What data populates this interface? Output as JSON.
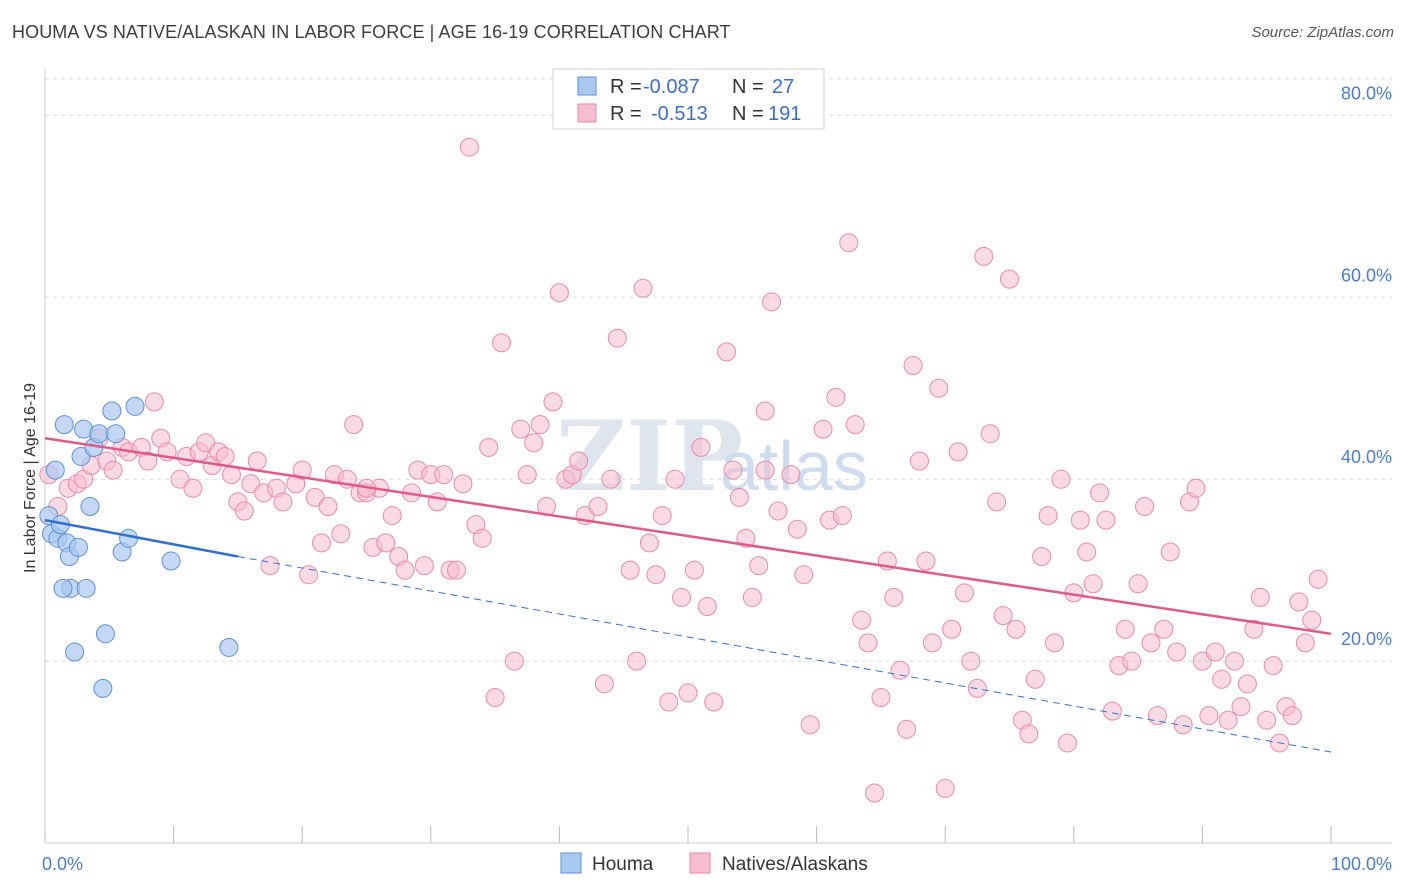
{
  "title": "HOUMA VS NATIVE/ALASKAN IN LABOR FORCE | AGE 16-19 CORRELATION CHART",
  "source": "Source: ZipAtlas.com",
  "watermark": {
    "zip": "ZIP",
    "atlas": "atlas"
  },
  "chart_data": {
    "type": "scatter",
    "title": "HOUMA VS NATIVE/ALASKAN IN LABOR FORCE | AGE 16-19 CORRELATION CHART",
    "xlabel": "",
    "ylabel": "In Labor Force | Age 16-19",
    "xlim": [
      0,
      100
    ],
    "ylim": [
      0,
      84
    ],
    "x_tick_labels": [
      "0.0%",
      "100.0%"
    ],
    "y_ticks": [
      20,
      40,
      60,
      80
    ],
    "y_tick_labels": [
      "20.0%",
      "40.0%",
      "60.0%",
      "80.0%"
    ],
    "grid": true,
    "legend_placement": "top-center",
    "series": [
      {
        "name": "Houma",
        "color": "#a9c8ef",
        "stroke": "#5b8fd4",
        "line_color": "#2f6fcf",
        "r_label": "R =",
        "r_value": "-0.087",
        "n_label": "N =",
        "n_value": "27",
        "trend": {
          "x0": 0,
          "y0": 35.5,
          "x1": 15,
          "y1": 31.5,
          "dashed_to_x": 100,
          "dashed_to_y": 10
        },
        "points": [
          [
            0.3,
            36.0
          ],
          [
            0.5,
            34.0
          ],
          [
            0.8,
            41.0
          ],
          [
            1.0,
            33.5
          ],
          [
            1.2,
            35.0
          ],
          [
            1.5,
            46.0
          ],
          [
            1.7,
            33.0
          ],
          [
            1.9,
            31.5
          ],
          [
            2.0,
            28.0
          ],
          [
            2.3,
            21.0
          ],
          [
            2.8,
            42.5
          ],
          [
            3.0,
            45.5
          ],
          [
            3.2,
            28.0
          ],
          [
            3.5,
            37.0
          ],
          [
            3.8,
            43.5
          ],
          [
            4.2,
            45.0
          ],
          [
            4.5,
            17.0
          ],
          [
            4.7,
            23.0
          ],
          [
            5.2,
            47.5
          ],
          [
            5.5,
            45.0
          ],
          [
            6.0,
            32.0
          ],
          [
            6.5,
            33.5
          ],
          [
            7.0,
            48.0
          ],
          [
            9.8,
            31.0
          ],
          [
            14.3,
            21.5
          ],
          [
            2.6,
            32.5
          ],
          [
            1.4,
            28.0
          ]
        ]
      },
      {
        "name": "Natives/Alaskans",
        "color": "#f6bcd0",
        "stroke": "#e889a8",
        "line_color": "#e0588a",
        "r_label": "R =",
        "r_value": "-0.513",
        "n_label": "N =",
        "n_value": "191",
        "trend": {
          "x0": 0,
          "y0": 44.5,
          "x1": 100,
          "y1": 23.0
        },
        "points": [
          [
            0.3,
            40.5
          ],
          [
            1.0,
            37.0
          ],
          [
            1.8,
            39.0
          ],
          [
            2.5,
            39.5
          ],
          [
            3.0,
            40.0
          ],
          [
            3.6,
            41.5
          ],
          [
            4.2,
            44.5
          ],
          [
            4.8,
            42.0
          ],
          [
            5.3,
            41.0
          ],
          [
            6.0,
            43.5
          ],
          [
            6.5,
            43.0
          ],
          [
            7.5,
            43.5
          ],
          [
            8.0,
            42.0
          ],
          [
            8.5,
            48.5
          ],
          [
            9.0,
            44.5
          ],
          [
            9.5,
            43.0
          ],
          [
            10.5,
            40.0
          ],
          [
            11.0,
            42.5
          ],
          [
            11.5,
            39.0
          ],
          [
            12.0,
            43.0
          ],
          [
            12.5,
            44.0
          ],
          [
            13.0,
            41.5
          ],
          [
            13.5,
            43.0
          ],
          [
            14.0,
            42.5
          ],
          [
            14.5,
            40.5
          ],
          [
            15.0,
            37.5
          ],
          [
            15.5,
            36.5
          ],
          [
            16.0,
            39.5
          ],
          [
            16.5,
            42.0
          ],
          [
            17.0,
            38.5
          ],
          [
            17.5,
            30.5
          ],
          [
            18.0,
            39.0
          ],
          [
            18.5,
            37.5
          ],
          [
            19.5,
            39.5
          ],
          [
            20.0,
            41.0
          ],
          [
            20.5,
            29.5
          ],
          [
            21.0,
            38.0
          ],
          [
            21.5,
            33.0
          ],
          [
            22.0,
            37.0
          ],
          [
            22.5,
            40.5
          ],
          [
            23.0,
            34.0
          ],
          [
            23.5,
            40.0
          ],
          [
            24.0,
            46.0
          ],
          [
            24.5,
            38.5
          ],
          [
            25.0,
            38.5
          ],
          [
            25.5,
            32.5
          ],
          [
            26.0,
            39.0
          ],
          [
            26.5,
            33.0
          ],
          [
            27.0,
            36.0
          ],
          [
            27.5,
            31.5
          ],
          [
            28.0,
            30.0
          ],
          [
            28.5,
            38.5
          ],
          [
            29.0,
            41.0
          ],
          [
            29.5,
            30.5
          ],
          [
            30.0,
            40.5
          ],
          [
            30.5,
            37.5
          ],
          [
            31.0,
            40.5
          ],
          [
            31.5,
            30.0
          ],
          [
            32.0,
            30.0
          ],
          [
            32.5,
            39.5
          ],
          [
            33.0,
            76.5
          ],
          [
            33.5,
            35.0
          ],
          [
            34.0,
            33.5
          ],
          [
            34.5,
            43.5
          ],
          [
            35.0,
            16.0
          ],
          [
            35.5,
            55.0
          ],
          [
            36.5,
            20.0
          ],
          [
            37.0,
            45.5
          ],
          [
            37.5,
            40.5
          ],
          [
            38.0,
            44.0
          ],
          [
            38.5,
            46.0
          ],
          [
            39.0,
            37.0
          ],
          [
            39.5,
            48.5
          ],
          [
            40.0,
            60.5
          ],
          [
            40.5,
            40.0
          ],
          [
            41.0,
            40.5
          ],
          [
            41.5,
            42.0
          ],
          [
            42.0,
            36.0
          ],
          [
            43.0,
            37.0
          ],
          [
            43.5,
            17.5
          ],
          [
            44.0,
            40.0
          ],
          [
            44.5,
            55.5
          ],
          [
            45.5,
            30.0
          ],
          [
            46.0,
            20.0
          ],
          [
            46.5,
            61.0
          ],
          [
            47.0,
            33.0
          ],
          [
            47.5,
            29.5
          ],
          [
            48.0,
            36.0
          ],
          [
            48.5,
            15.5
          ],
          [
            49.0,
            40.0
          ],
          [
            49.5,
            27.0
          ],
          [
            50.0,
            16.5
          ],
          [
            50.5,
            30.0
          ],
          [
            51.0,
            43.5
          ],
          [
            51.5,
            26.0
          ],
          [
            52.0,
            15.5
          ],
          [
            53.0,
            54.0
          ],
          [
            53.5,
            41.0
          ],
          [
            54.0,
            38.0
          ],
          [
            54.5,
            33.5
          ],
          [
            55.0,
            27.0
          ],
          [
            55.5,
            30.5
          ],
          [
            56.0,
            47.5
          ],
          [
            56.5,
            59.5
          ],
          [
            57.0,
            36.5
          ],
          [
            58.0,
            40.5
          ],
          [
            58.5,
            34.5
          ],
          [
            59.0,
            29.5
          ],
          [
            59.5,
            13.0
          ],
          [
            60.5,
            45.5
          ],
          [
            61.0,
            35.5
          ],
          [
            61.5,
            49.0
          ],
          [
            62.0,
            36.0
          ],
          [
            62.5,
            66.0
          ],
          [
            63.0,
            46.0
          ],
          [
            63.5,
            24.5
          ],
          [
            64.0,
            22.0
          ],
          [
            64.5,
            5.5
          ],
          [
            65.0,
            16.0
          ],
          [
            65.5,
            31.0
          ],
          [
            66.0,
            27.0
          ],
          [
            66.5,
            19.0
          ],
          [
            67.0,
            12.5
          ],
          [
            67.5,
            52.5
          ],
          [
            68.0,
            42.0
          ],
          [
            68.5,
            31.0
          ],
          [
            69.0,
            22.0
          ],
          [
            69.5,
            50.0
          ],
          [
            70.0,
            6.0
          ],
          [
            70.5,
            23.5
          ],
          [
            71.0,
            43.0
          ],
          [
            71.5,
            27.5
          ],
          [
            72.0,
            20.0
          ],
          [
            72.5,
            17.0
          ],
          [
            73.0,
            64.5
          ],
          [
            73.5,
            45.0
          ],
          [
            74.0,
            37.5
          ],
          [
            74.5,
            25.0
          ],
          [
            75.0,
            62.0
          ],
          [
            75.5,
            23.5
          ],
          [
            76.0,
            13.5
          ],
          [
            76.5,
            12.0
          ],
          [
            77.0,
            18.0
          ],
          [
            77.5,
            31.5
          ],
          [
            78.0,
            36.0
          ],
          [
            78.5,
            22.0
          ],
          [
            79.0,
            40.0
          ],
          [
            79.5,
            11.0
          ],
          [
            80.0,
            27.5
          ],
          [
            80.5,
            35.5
          ],
          [
            81.0,
            32.0
          ],
          [
            81.5,
            28.5
          ],
          [
            82.0,
            38.5
          ],
          [
            82.5,
            35.5
          ],
          [
            83.0,
            14.5
          ],
          [
            83.5,
            19.5
          ],
          [
            84.0,
            23.5
          ],
          [
            84.5,
            20.0
          ],
          [
            85.0,
            28.5
          ],
          [
            85.5,
            37.0
          ],
          [
            86.0,
            22.0
          ],
          [
            86.5,
            14.0
          ],
          [
            87.0,
            23.5
          ],
          [
            87.5,
            32.0
          ],
          [
            88.0,
            21.0
          ],
          [
            88.5,
            13.0
          ],
          [
            89.0,
            37.5
          ],
          [
            89.5,
            39.0
          ],
          [
            90.0,
            20.0
          ],
          [
            90.5,
            14.0
          ],
          [
            91.0,
            21.0
          ],
          [
            91.5,
            18.0
          ],
          [
            92.0,
            13.5
          ],
          [
            92.5,
            20.0
          ],
          [
            93.0,
            15.0
          ],
          [
            93.5,
            17.5
          ],
          [
            94.0,
            23.5
          ],
          [
            94.5,
            27.0
          ],
          [
            95.0,
            13.5
          ],
          [
            95.5,
            19.5
          ],
          [
            96.0,
            11.0
          ],
          [
            96.5,
            15.0
          ],
          [
            97.0,
            14.0
          ],
          [
            97.5,
            26.5
          ],
          [
            98.0,
            22.0
          ],
          [
            98.5,
            24.5
          ],
          [
            99.0,
            29.0
          ],
          [
            56.0,
            41.0
          ],
          [
            25.0,
            39.0
          ]
        ]
      }
    ]
  }
}
